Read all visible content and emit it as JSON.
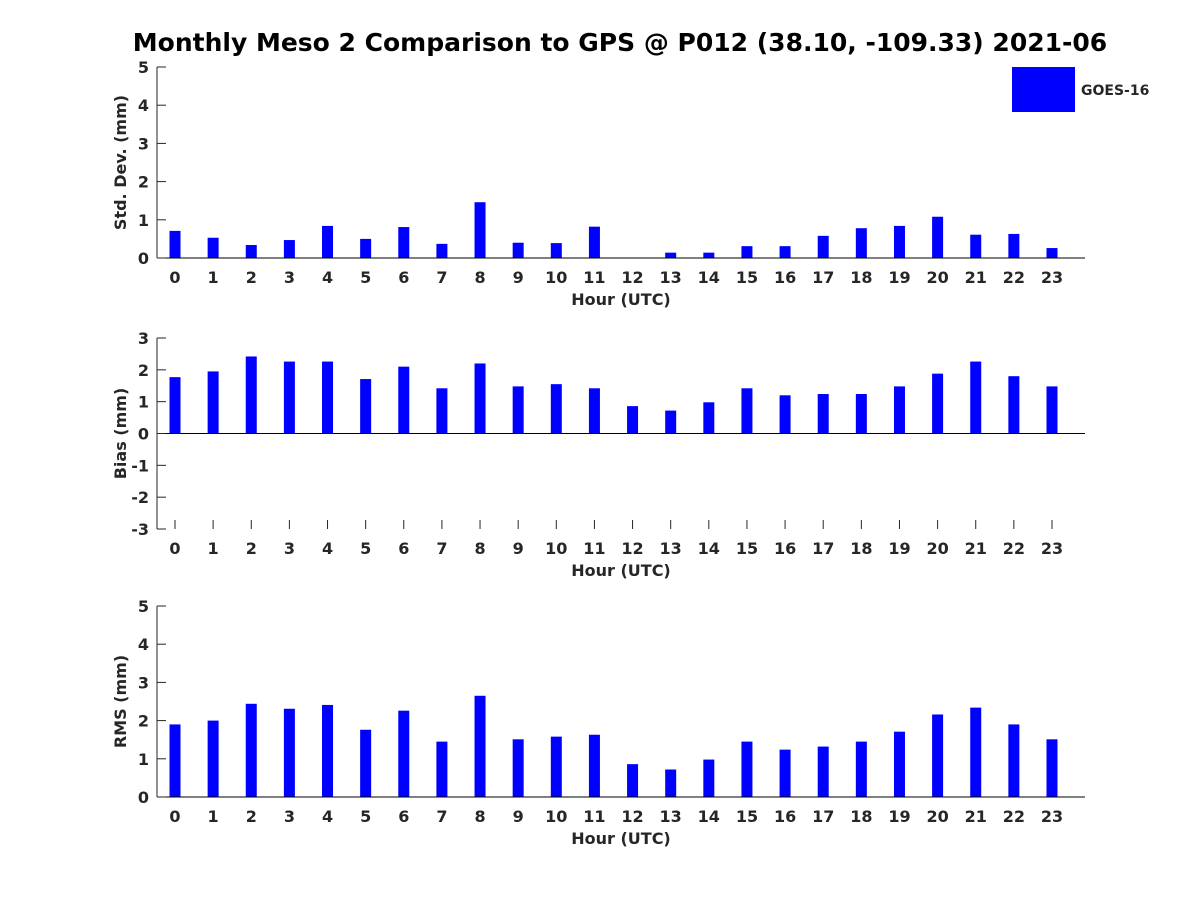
{
  "chart_data": [
    {
      "type": "bar",
      "title": "Monthly Meso 2 Comparison to GPS @ P012 (38.10, -109.33) 2021-06",
      "xlabel": "Hour (UTC)",
      "ylabel": "Std. Dev. (mm)",
      "ylim": [
        0,
        5
      ],
      "yticks": [
        "0",
        "1",
        "2",
        "3",
        "4",
        "5"
      ],
      "categories": [
        "0",
        "1",
        "2",
        "3",
        "4",
        "5",
        "6",
        "7",
        "8",
        "9",
        "10",
        "11",
        "12",
        "13",
        "14",
        "15",
        "16",
        "17",
        "18",
        "19",
        "20",
        "21",
        "22",
        "23"
      ],
      "legend": {
        "placement": "top-right",
        "entries": [
          "GOES-16"
        ]
      },
      "series": [
        {
          "name": "GOES-16",
          "color": "#0000ff",
          "values": [
            0.71,
            0.53,
            0.34,
            0.47,
            0.84,
            0.5,
            0.81,
            0.37,
            1.46,
            0.4,
            0.39,
            0.82,
            0,
            0.14,
            0.14,
            0.31,
            0.31,
            0.58,
            0.78,
            0.84,
            1.08,
            0.61,
            0.63,
            0.26
          ]
        }
      ]
    },
    {
      "type": "bar",
      "xlabel": "Hour (UTC)",
      "ylabel": "Bias (mm)",
      "ylim": [
        -3,
        3
      ],
      "yticks": [
        "-3",
        "-2",
        "-1",
        "0",
        "1",
        "2",
        "3"
      ],
      "categories": [
        "0",
        "1",
        "2",
        "3",
        "4",
        "5",
        "6",
        "7",
        "8",
        "9",
        "10",
        "11",
        "12",
        "13",
        "14",
        "15",
        "16",
        "17",
        "18",
        "19",
        "20",
        "21",
        "22",
        "23"
      ],
      "series": [
        {
          "name": "GOES-16",
          "color": "#0000ff",
          "values": [
            1.77,
            1.95,
            2.42,
            2.26,
            2.26,
            1.71,
            2.1,
            1.42,
            2.2,
            1.48,
            1.55,
            1.42,
            0.86,
            0.72,
            0.98,
            1.42,
            1.2,
            1.24,
            1.24,
            1.48,
            1.88,
            2.26,
            1.8,
            1.48
          ]
        }
      ]
    },
    {
      "type": "bar",
      "xlabel": "Hour (UTC)",
      "ylabel": "RMS (mm)",
      "ylim": [
        0,
        5
      ],
      "yticks": [
        "0",
        "1",
        "2",
        "3",
        "4",
        "5"
      ],
      "categories": [
        "0",
        "1",
        "2",
        "3",
        "4",
        "5",
        "6",
        "7",
        "8",
        "9",
        "10",
        "11",
        "12",
        "13",
        "14",
        "15",
        "16",
        "17",
        "18",
        "19",
        "20",
        "21",
        "22",
        "23"
      ],
      "series": [
        {
          "name": "GOES-16",
          "color": "#0000ff",
          "values": [
            1.9,
            2.0,
            2.44,
            2.31,
            2.41,
            1.76,
            2.26,
            1.45,
            2.65,
            1.51,
            1.58,
            1.63,
            0.86,
            0.72,
            0.98,
            1.45,
            1.24,
            1.32,
            1.45,
            1.71,
            2.16,
            2.34,
            1.9,
            1.51
          ]
        }
      ]
    }
  ]
}
